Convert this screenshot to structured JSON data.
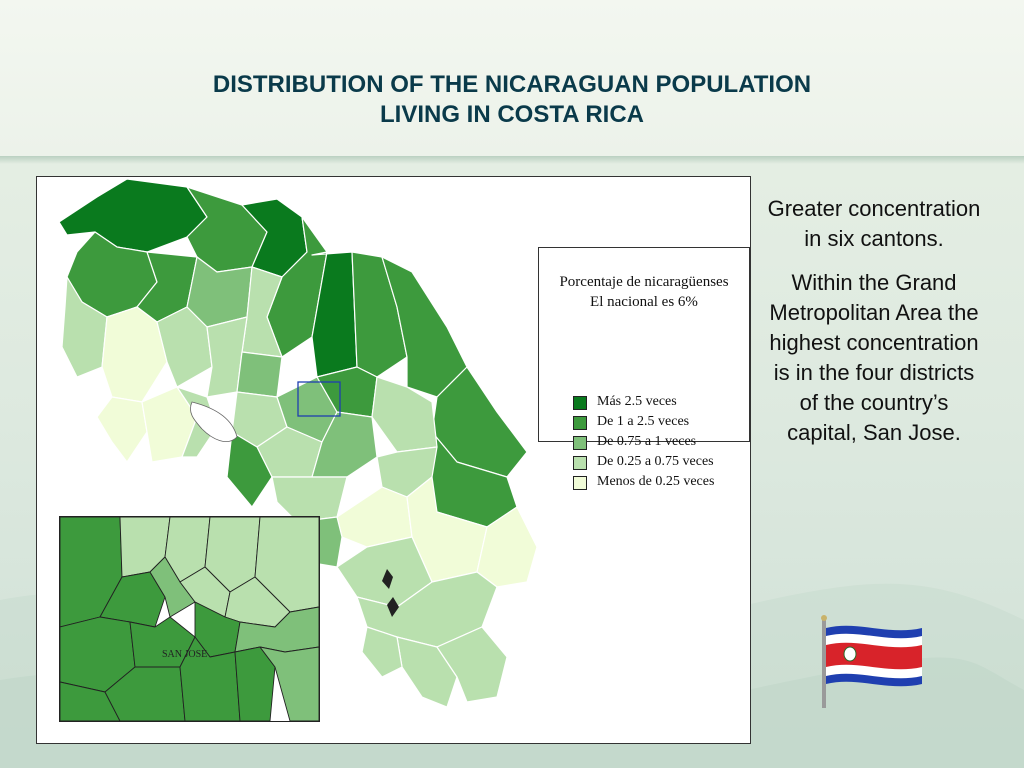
{
  "title": {
    "line1": "DISTRIBUTION OF THE NICARAGUAN POPULATION",
    "line2": "LIVING IN COSTA RICA"
  },
  "legend": {
    "title_line1": "Porcentaje de nicaragüenses",
    "title_line2": "El nacional es 6%",
    "items": [
      {
        "label": "Más 2.5 veces",
        "color": "#0a7a1e"
      },
      {
        "label": "De 1 a 2.5 veces",
        "color": "#3d9a3d"
      },
      {
        "label": "De 0.75 a 1 veces",
        "color": "#7fc07a"
      },
      {
        "label": "De 0.25 a 0.75 veces",
        "color": "#b9e0ae"
      },
      {
        "label": "Menos de 0.25 veces",
        "color": "#f1fcd8"
      }
    ]
  },
  "inset": {
    "label": "SAN JOSE"
  },
  "side_text": {
    "paragraph1": "Greater concentration in six cantons.",
    "paragraph2": "Within the Grand Metropolitan Area the highest concentration is in the four districts of the country’s capital, San Jose."
  },
  "colors": {
    "title": "#0a3a4a",
    "flag_blue": "#1f3fb0",
    "flag_red": "#d8232a",
    "flag_white": "#ffffff"
  },
  "icons": {
    "flag": "costa-rica-flag-icon"
  }
}
